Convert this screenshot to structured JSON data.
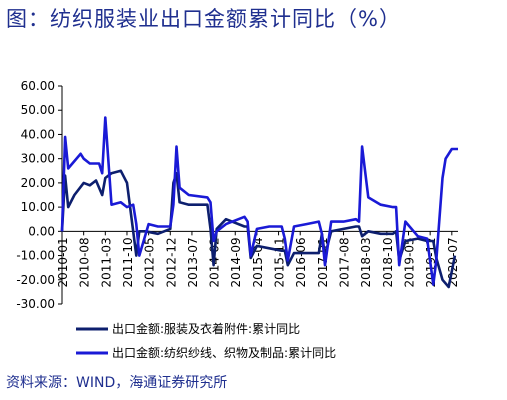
{
  "title": "图：纺织服装业出口金额累计同比（%）",
  "source": "资料来源：WIND，海通证券研究所",
  "chart_data": {
    "type": "line",
    "ylim": [
      -30,
      60
    ],
    "yticks": [
      "60.00",
      "50.00",
      "40.00",
      "30.00",
      "20.00",
      "10.00",
      "0.00",
      "-10.00",
      "-20.00",
      "-30.00"
    ],
    "xticks": [
      "2010-01",
      "2010-08",
      "2011-03",
      "2011-10",
      "2012-05",
      "2012-12",
      "2013-07",
      "2014-02",
      "2014-09",
      "2015-04",
      "2015-11",
      "2016-06",
      "2017-01",
      "2017-08",
      "2018-03",
      "2018-10",
      "2019-05",
      "2019-12",
      "2020-07"
    ],
    "grid": false,
    "legend_position": "bottom",
    "colors": {
      "garment": "#0d1f6e",
      "textile": "#1a1ad6"
    },
    "series": [
      {
        "name": "出口金额:服装及衣着附件:累计同比",
        "key": "garment",
        "x": [
          "2010-01",
          "2010-02",
          "2010-03",
          "2010-05",
          "2010-08",
          "2010-10",
          "2010-12",
          "2011-02",
          "2011-03",
          "2011-05",
          "2011-08",
          "2011-10",
          "2011-12",
          "2012-01",
          "2012-02",
          "2012-04",
          "2012-08",
          "2012-12",
          "2013-01",
          "2013-02",
          "2013-03",
          "2013-06",
          "2013-12",
          "2014-01",
          "2014-02",
          "2014-03",
          "2014-06",
          "2014-12",
          "2015-01",
          "2015-02",
          "2015-04",
          "2015-08",
          "2015-12",
          "2016-01",
          "2016-02",
          "2016-04",
          "2016-08",
          "2016-12",
          "2017-01",
          "2017-02",
          "2017-04",
          "2017-08",
          "2017-12",
          "2018-01",
          "2018-02",
          "2018-04",
          "2018-08",
          "2018-12",
          "2019-01",
          "2019-02",
          "2019-04",
          "2019-08",
          "2019-11",
          "2020-01",
          "2020-02",
          "2020-04",
          "2020-06",
          "2020-08"
        ],
        "values": [
          0,
          23,
          10,
          15,
          20,
          19,
          21,
          15,
          22,
          24,
          25,
          20,
          0,
          -10,
          0,
          0,
          -1,
          1,
          20,
          24,
          12,
          11,
          11,
          1,
          -14,
          1,
          5,
          2,
          2,
          -11,
          -6,
          -7,
          -8,
          -8,
          -14,
          -9,
          -9,
          -9,
          -1,
          -10,
          0,
          1,
          2,
          2,
          -2,
          0,
          -1,
          -1,
          0,
          -12,
          -4,
          -3,
          -4,
          -4,
          -11,
          -20,
          -23,
          -10
        ]
      },
      {
        "name": "出口金额:纺织纱线、织物及制品:累计同比",
        "key": "textile",
        "x": [
          "2010-01",
          "2010-02",
          "2010-03",
          "2010-05",
          "2010-07",
          "2010-08",
          "2010-10",
          "2011-01",
          "2011-02",
          "2011-03",
          "2011-05",
          "2011-08",
          "2011-10",
          "2011-12",
          "2012-01",
          "2012-02",
          "2012-05",
          "2012-08",
          "2012-12",
          "2013-01",
          "2013-02",
          "2013-03",
          "2013-06",
          "2013-12",
          "2014-01",
          "2014-02",
          "2014-03",
          "2014-06",
          "2014-12",
          "2015-01",
          "2015-02",
          "2015-04",
          "2015-08",
          "2015-12",
          "2016-01",
          "2016-02",
          "2016-04",
          "2016-08",
          "2016-12",
          "2017-01",
          "2017-02",
          "2017-04",
          "2017-08",
          "2017-12",
          "2018-01",
          "2018-02",
          "2018-04",
          "2018-08",
          "2018-12",
          "2019-01",
          "2019-02",
          "2019-04",
          "2019-08",
          "2019-11",
          "2020-01",
          "2020-02",
          "2020-04",
          "2020-05",
          "2020-07",
          "2020-09"
        ],
        "values": [
          0,
          39,
          26,
          29,
          32,
          30,
          28,
          28,
          24,
          47,
          11,
          12,
          10,
          11,
          3,
          -10,
          3,
          2,
          2,
          11,
          35,
          18,
          15,
          14,
          12,
          -4,
          0,
          3,
          6,
          4,
          -10,
          1,
          2,
          2,
          -3,
          -12,
          2,
          3,
          4,
          -1,
          -14,
          4,
          4,
          5,
          4,
          35,
          14,
          11,
          10,
          10,
          -14,
          4,
          -2,
          -3,
          -22,
          -12,
          22,
          30,
          34,
          34
        ]
      }
    ]
  }
}
